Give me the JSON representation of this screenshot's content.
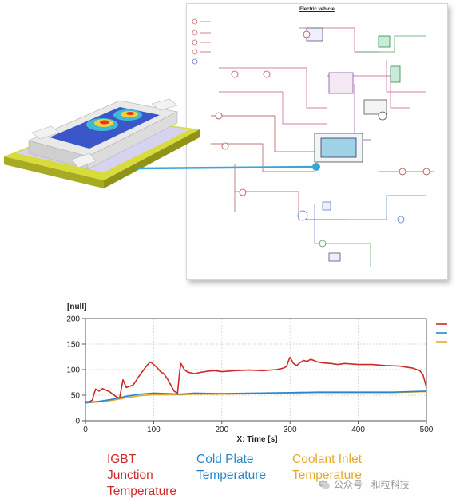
{
  "schematic": {
    "title": "Electric vehicle"
  },
  "colors": {
    "igbt": "#cf2a2a",
    "cold_plate": "#2a86c8",
    "coolant": "#e6a82a",
    "link": "#3aa6d4"
  },
  "captions": {
    "igbt": "IGBT\nJunction\nTemperature",
    "cold_plate": "Cold Plate\nTemperature",
    "coolant": "Coolant Inlet\nTemperature"
  },
  "watermark": {
    "text": "公众号 · 和粒科技",
    "icon": "wechat-icon"
  },
  "chart_data": {
    "type": "line",
    "ylabel": "[null]",
    "xlabel": "X: Time [s]",
    "xlim": [
      0,
      500
    ],
    "ylim": [
      0,
      200
    ],
    "xticks": [
      0,
      100,
      200,
      300,
      400,
      500
    ],
    "yticks": [
      0,
      50,
      100,
      150,
      200
    ],
    "grid": true,
    "legend": "top-right",
    "series": [
      {
        "key": "igbt",
        "x": [
          0,
          5,
          10,
          12,
          15,
          20,
          25,
          30,
          35,
          40,
          45,
          50,
          55,
          60,
          70,
          80,
          90,
          95,
          100,
          105,
          110,
          115,
          120,
          125,
          130,
          135,
          138,
          140,
          145,
          150,
          160,
          170,
          180,
          190,
          200,
          220,
          240,
          260,
          280,
          290,
          295,
          298,
          300,
          303,
          305,
          310,
          315,
          320,
          325,
          330,
          335,
          340,
          350,
          360,
          370,
          380,
          400,
          420,
          440,
          460,
          470,
          480,
          490,
          495,
          500
        ],
        "y": [
          37,
          37,
          40,
          50,
          62,
          58,
          63,
          60,
          57,
          52,
          47,
          44,
          80,
          65,
          70,
          90,
          108,
          115,
          110,
          104,
          96,
          92,
          82,
          70,
          58,
          54,
          95,
          112,
          100,
          95,
          92,
          95,
          97,
          98,
          96,
          98,
          99,
          98,
          100,
          103,
          106,
          118,
          124,
          117,
          112,
          108,
          114,
          118,
          116,
          120,
          118,
          115,
          113,
          112,
          110,
          112,
          110,
          110,
          108,
          107,
          105,
          103,
          98,
          90,
          65
        ]
      },
      {
        "key": "cold_plate",
        "x": [
          0,
          20,
          40,
          60,
          80,
          100,
          120,
          140,
          160,
          200,
          250,
          300,
          340,
          400,
          450,
          500
        ],
        "y": [
          35,
          38,
          42,
          48,
          52,
          54,
          53,
          52,
          54,
          53,
          54,
          55,
          56,
          56,
          56,
          58
        ]
      },
      {
        "key": "coolant",
        "x": [
          0,
          20,
          40,
          60,
          80,
          100,
          120,
          140,
          160,
          200,
          250,
          300,
          340,
          400,
          450,
          500
        ],
        "y": [
          35,
          37,
          40,
          45,
          49,
          51,
          51,
          51,
          52,
          52,
          53,
          54,
          55,
          55,
          55,
          57
        ]
      }
    ]
  }
}
